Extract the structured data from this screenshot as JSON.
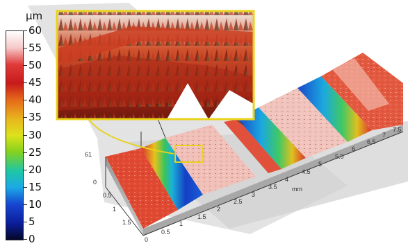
{
  "colorbar": {
    "unit": "µm",
    "ticks": [
      "60",
      "55",
      "50",
      "45",
      "40",
      "35",
      "30",
      "25",
      "20",
      "15",
      "10",
      "5",
      "0"
    ]
  },
  "axes": {
    "x_ticks": [
      "0",
      "0.5",
      "1",
      "1.5",
      "2",
      "2.5",
      "3",
      "3.5",
      "4",
      "4.5",
      "5",
      "5.5",
      "6",
      "6.5",
      "7",
      "7.5"
    ],
    "x_unit": "mm",
    "y_ticks": [
      "0",
      "0.5",
      "1",
      "1.5"
    ],
    "z_tick": "61"
  },
  "colors": {
    "surface_high": "#e84a3a",
    "surface_peak": "#f4c8c0",
    "surface_low": "#1b3fc6",
    "inset_border": "#e8d21c",
    "plane": "#d4d4d4"
  }
}
